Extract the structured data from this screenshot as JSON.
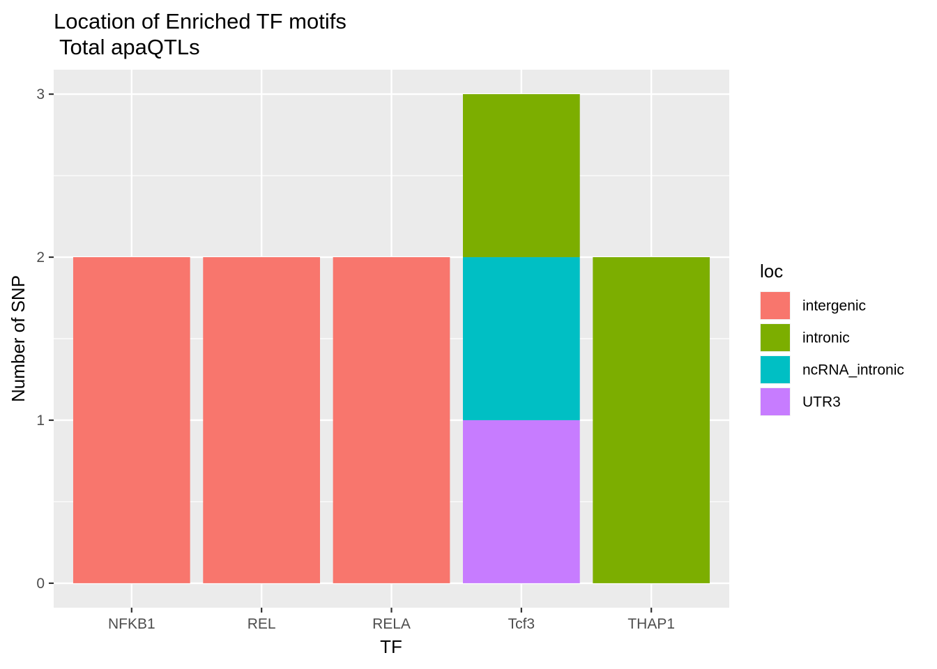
{
  "chart_data": {
    "type": "bar",
    "stacked": true,
    "title_line1": "Location of Enriched TF motifs",
    "title_line2": " Total apaQTLs",
    "xlabel": "TF",
    "ylabel": "Number of SNP",
    "categories": [
      "NFKB1",
      "REL",
      "RELA",
      "Tcf3",
      "THAP1"
    ],
    "ylim": [
      -0.15,
      3.15
    ],
    "yticks": [
      0,
      1,
      2,
      3
    ],
    "ytick_labels": [
      "0",
      "1",
      "2",
      "3"
    ],
    "grid": true,
    "legend_title": "loc",
    "legend_position": "right",
    "series": [
      {
        "name": "intergenic",
        "color": "#F8766D",
        "values": [
          2,
          2,
          2,
          0,
          0
        ]
      },
      {
        "name": "intronic",
        "color": "#7CAE00",
        "values": [
          0,
          0,
          0,
          1,
          2
        ]
      },
      {
        "name": "ncRNA_intronic",
        "color": "#00BFC4",
        "values": [
          0,
          0,
          0,
          1,
          0
        ]
      },
      {
        "name": "UTR3",
        "color": "#C77CFF",
        "values": [
          0,
          0,
          0,
          1,
          0
        ]
      }
    ],
    "stack_order": [
      "UTR3",
      "ncRNA_intronic",
      "intronic",
      "intergenic"
    ],
    "panel_color": "#EBEBEB",
    "grid_color": "#FFFFFF"
  }
}
